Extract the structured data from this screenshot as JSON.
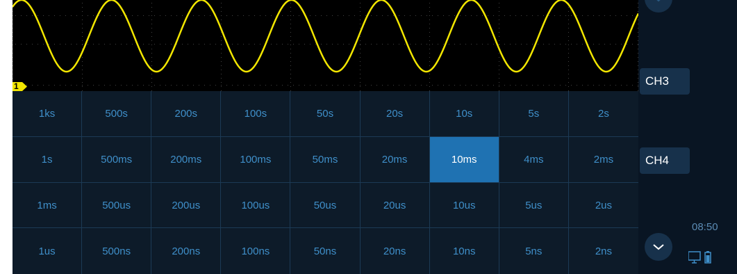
{
  "scope": {
    "channel_marker": "1",
    "trace_color": "#f2e600",
    "background": "#000000"
  },
  "timebase": {
    "selected": "10ms",
    "rows": [
      [
        "1ks",
        "500s",
        "200s",
        "100s",
        "50s",
        "20s",
        "10s",
        "5s",
        "2s"
      ],
      [
        "1s",
        "500ms",
        "200ms",
        "100ms",
        "50ms",
        "20ms",
        "10ms",
        "4ms",
        "2ms"
      ],
      [
        "1ms",
        "500us",
        "200us",
        "100us",
        "50us",
        "20us",
        "10us",
        "5us",
        "2us"
      ],
      [
        "1us",
        "500ns",
        "200ns",
        "100ns",
        "50ns",
        "20ns",
        "10ns",
        "5ns",
        "2ns"
      ]
    ]
  },
  "sidebar": {
    "ch3_label": "CH3",
    "ch4_label": "CH4",
    "clock": "08:50",
    "icons": [
      "chevron-down-icon",
      "monitor-icon",
      "battery-icon"
    ]
  },
  "colors": {
    "cell_text": "#3f8fc9",
    "selected_bg": "#1f72b2",
    "grid_bg": "#0d1b29",
    "sidebar_bg": "#091523",
    "button_bg": "#17314b"
  }
}
